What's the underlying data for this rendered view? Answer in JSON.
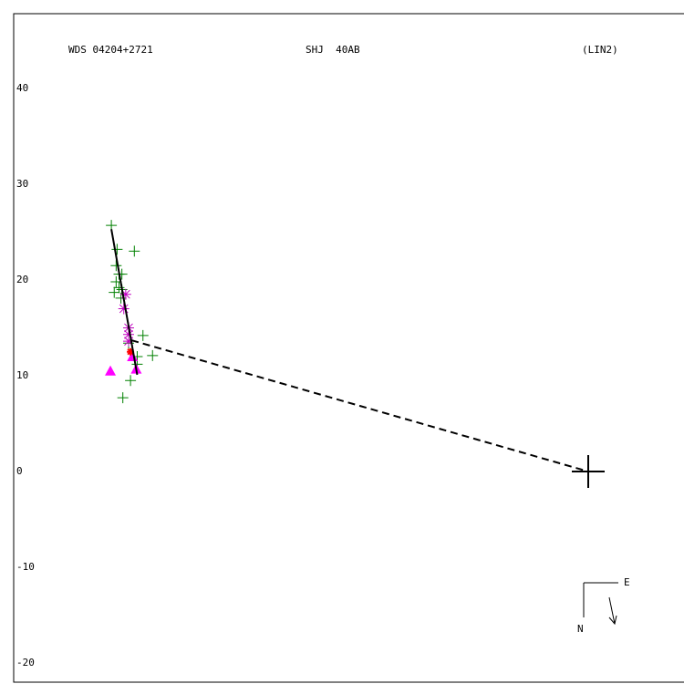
{
  "chart_data": {
    "type": "scatter",
    "title": "WDS 04204+2721",
    "designation": "SHJ  40AB",
    "note": "(LIN2)",
    "compass": {
      "east": "E",
      "north": "N"
    },
    "xlim": [
      -60,
      10
    ],
    "ylim": [
      -22,
      47.8
    ],
    "yticks": [
      40,
      30,
      20,
      10,
      0,
      -10,
      -20
    ],
    "series": [
      {
        "marker": "plus",
        "color": "#008000",
        "x": [
          -49.8,
          -49.2,
          -49.3,
          -49.0,
          -48.7,
          -49.3,
          -49.0,
          -48.7,
          -49.5,
          -48.8,
          -47.4,
          -48.0,
          -46.5,
          -45.5,
          -47.1,
          -47.8,
          -48.6,
          -47.1
        ],
        "y": [
          25.7,
          23.2,
          21.5,
          20.6,
          20.6,
          19.8,
          19.2,
          19.0,
          18.7,
          18.1,
          23.0,
          13.4,
          14.2,
          12.1,
          12.0,
          9.5,
          7.7,
          11.2
        ]
      },
      {
        "marker": "asterisk",
        "color": "#c000c0",
        "x": [
          -48.3,
          -48.5,
          -48.0,
          -48.0,
          -48.0
        ],
        "y": [
          18.5,
          17.0,
          15.0,
          14.3,
          13.6
        ]
      },
      {
        "marker": "triangle",
        "color": "#ff00ff",
        "x": [
          -49.9,
          -47.6,
          -47.2
        ],
        "y": [
          10.5,
          12.0,
          10.7
        ]
      },
      {
        "marker": "star",
        "color": "#ff0000",
        "x": [
          -47.8
        ],
        "y": [
          12.5
        ]
      },
      {
        "marker": "line",
        "color": "#000000",
        "x": [
          -49.8,
          -47.1
        ],
        "y": [
          25.3,
          10.1
        ]
      },
      {
        "marker": "dashed",
        "color": "#000000",
        "x": [
          -47.7,
          0
        ],
        "y": [
          13.7,
          0
        ]
      },
      {
        "marker": "cross",
        "color": "#000000",
        "x": [
          0
        ],
        "y": [
          0
        ]
      }
    ]
  }
}
